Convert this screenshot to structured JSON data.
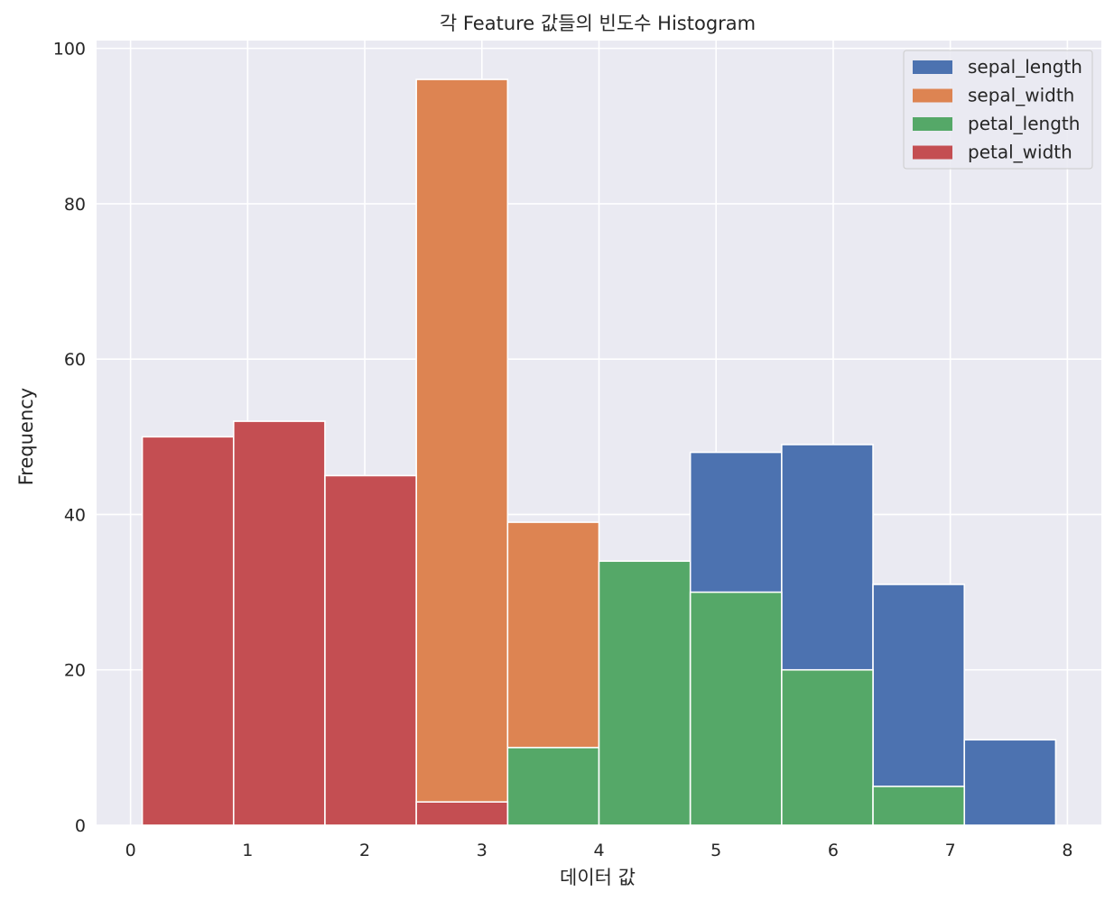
{
  "chart_data": {
    "type": "bar",
    "subtype": "overlaid-histogram",
    "title": "각 Feature 값들의 빈도수 Histogram",
    "xlabel": "데이터 값",
    "ylabel": "Frequency",
    "xlim": [
      -0.29,
      8.29
    ],
    "ylim": [
      0,
      101
    ],
    "xticks": [
      0,
      1,
      2,
      3,
      4,
      5,
      6,
      7,
      8
    ],
    "yticks": [
      0,
      20,
      40,
      60,
      80,
      100
    ],
    "grid": true,
    "legend_position": "top-right",
    "bin_edges": [
      0.1,
      0.88,
      1.66,
      2.44,
      3.22,
      4.0,
      4.78,
      5.56,
      6.34,
      7.12,
      7.9
    ],
    "series": [
      {
        "name": "sepal_length",
        "color": "#4c72b0",
        "values": [
          0,
          0,
          0,
          0,
          0,
          0,
          48,
          49,
          31,
          11
        ]
      },
      {
        "name": "sepal_width",
        "color": "#dd8452",
        "values": [
          0,
          0,
          0,
          96,
          39,
          0,
          0,
          0,
          0,
          0
        ]
      },
      {
        "name": "petal_length",
        "color": "#55a868",
        "values": [
          0,
          0,
          0,
          0,
          10,
          34,
          30,
          20,
          5,
          0
        ]
      },
      {
        "name": "petal_width",
        "color": "#c44e52",
        "values": [
          50,
          52,
          45,
          3,
          0,
          0,
          0,
          0,
          0,
          0
        ]
      }
    ]
  }
}
